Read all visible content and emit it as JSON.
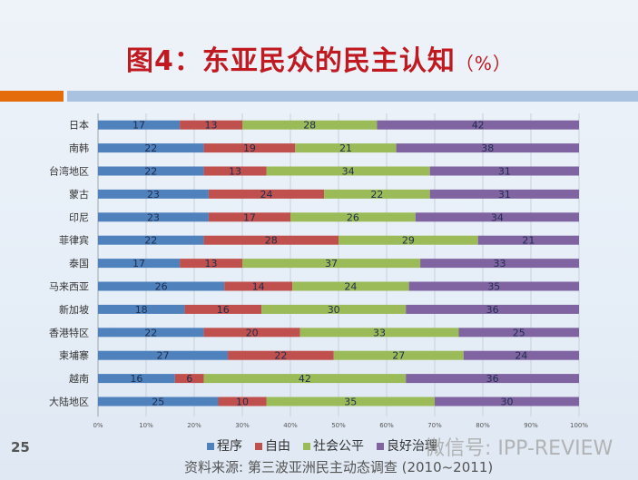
{
  "slide": {
    "title": "图4：东亚民众的民主认知",
    "title_unit": "（%）",
    "page_number": "25",
    "source": "资料来源: 第三波亚洲民主动态调查 (2010~2011)",
    "watermark": "微信号: IPP-REVIEW"
  },
  "chart_data": {
    "type": "bar",
    "orientation": "horizontal",
    "stacked": "percent",
    "categories": [
      "日本",
      "南韩",
      "台湾地区",
      "蒙古",
      "印尼",
      "菲律宾",
      "泰国",
      "马来西亚",
      "新加坡",
      "香港特区",
      "柬埔寨",
      "越南",
      "大陆地区"
    ],
    "series": [
      {
        "name": "程序",
        "color": "#4f81bd",
        "values": [
          17,
          22,
          22,
          23,
          23,
          22,
          17,
          26,
          18,
          22,
          27,
          16,
          25
        ]
      },
      {
        "name": "自由",
        "color": "#c0504d",
        "values": [
          13,
          19,
          13,
          24,
          17,
          28,
          13,
          14,
          16,
          20,
          22,
          6,
          10
        ]
      },
      {
        "name": "社会公平",
        "color": "#9bbb59",
        "values": [
          28,
          21,
          34,
          22,
          26,
          29,
          37,
          24,
          30,
          33,
          27,
          42,
          35
        ]
      },
      {
        "name": "良好治理",
        "color": "#8064a2",
        "values": [
          42,
          38,
          31,
          31,
          34,
          21,
          33,
          35,
          36,
          25,
          24,
          36,
          30
        ]
      }
    ],
    "xticks": [
      "0%",
      "10%",
      "20%",
      "30%",
      "40%",
      "50%",
      "60%",
      "70%",
      "80%",
      "90%",
      "100%"
    ],
    "xlim": [
      0,
      100
    ],
    "grid": true,
    "legend_position": "bottom"
  }
}
